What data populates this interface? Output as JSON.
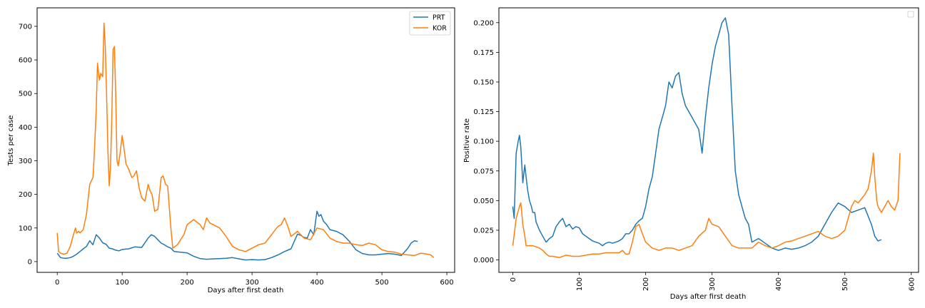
{
  "chart_data": [
    {
      "type": "line",
      "xlabel": "Days after first death",
      "ylabel": "Tests per case",
      "xlim": [
        -31,
        612
      ],
      "ylim": [
        -32,
        755
      ],
      "xticks": [
        0,
        100,
        200,
        300,
        400,
        500,
        600
      ],
      "yticks": [
        0,
        100,
        200,
        300,
        400,
        500,
        600,
        700
      ],
      "legend": "top-right",
      "series": [
        {
          "name": "PRT",
          "color": "#1f77b4",
          "x": [
            0,
            5,
            10,
            15,
            20,
            25,
            30,
            35,
            40,
            45,
            50,
            55,
            60,
            65,
            70,
            75,
            80,
            85,
            90,
            95,
            100,
            110,
            120,
            130,
            140,
            145,
            150,
            155,
            160,
            165,
            170,
            175,
            180,
            190,
            200,
            210,
            220,
            230,
            240,
            250,
            260,
            270,
            280,
            290,
            300,
            310,
            320,
            330,
            340,
            350,
            360,
            365,
            370,
            375,
            380,
            385,
            390,
            395,
            400,
            403,
            406,
            410,
            415,
            420,
            430,
            440,
            450,
            460,
            470,
            480,
            490,
            500,
            510,
            520,
            530,
            540,
            545,
            550,
            555
          ],
          "values": [
            25,
            12,
            10,
            10,
            12,
            16,
            22,
            30,
            38,
            45,
            62,
            50,
            80,
            70,
            56,
            52,
            40,
            38,
            34,
            32,
            36,
            38,
            44,
            42,
            70,
            80,
            75,
            65,
            55,
            50,
            44,
            40,
            30,
            28,
            26,
            16,
            9,
            7,
            8,
            9,
            10,
            12,
            8,
            5,
            6,
            5,
            6,
            12,
            20,
            30,
            38,
            60,
            82,
            78,
            72,
            70,
            95,
            80,
            150,
            135,
            140,
            120,
            110,
            95,
            90,
            80,
            60,
            35,
            24,
            20,
            20,
            22,
            24,
            22,
            18,
            40,
            55,
            62,
            60
          ]
        },
        {
          "name": "KOR",
          "color": "#ff7f0e",
          "x": [
            0,
            2,
            5,
            10,
            15,
            20,
            25,
            28,
            30,
            33,
            35,
            40,
            45,
            50,
            55,
            57,
            60,
            62,
            65,
            67,
            70,
            72,
            74,
            76,
            78,
            80,
            82,
            84,
            86,
            88,
            90,
            92,
            94,
            96,
            100,
            104,
            106,
            110,
            115,
            118,
            122,
            126,
            130,
            135,
            140,
            143,
            146,
            150,
            155,
            160,
            163,
            167,
            170,
            175,
            178,
            185,
            195,
            200,
            210,
            220,
            225,
            230,
            235,
            240,
            250,
            260,
            270,
            280,
            290,
            300,
            310,
            320,
            330,
            340,
            345,
            350,
            355,
            360,
            370,
            380,
            390,
            400,
            410,
            420,
            430,
            440,
            450,
            460,
            470,
            480,
            490,
            500,
            510,
            520,
            530,
            540,
            550,
            560,
            570,
            575,
            580
          ],
          "values": [
            85,
            30,
            25,
            22,
            25,
            45,
            80,
            100,
            85,
            90,
            85,
            95,
            140,
            230,
            250,
            320,
            450,
            590,
            540,
            560,
            550,
            710,
            640,
            500,
            330,
            225,
            280,
            420,
            630,
            640,
            500,
            300,
            285,
            310,
            375,
            320,
            290,
            275,
            250,
            255,
            270,
            220,
            190,
            180,
            230,
            210,
            200,
            150,
            155,
            250,
            255,
            230,
            225,
            100,
            40,
            50,
            80,
            110,
            125,
            110,
            95,
            130,
            115,
            110,
            100,
            75,
            45,
            35,
            30,
            40,
            50,
            55,
            80,
            105,
            110,
            130,
            105,
            75,
            90,
            70,
            65,
            100,
            95,
            70,
            60,
            55,
            55,
            50,
            48,
            55,
            50,
            35,
            30,
            28,
            22,
            20,
            18,
            25,
            22,
            20,
            12
          ]
        }
      ]
    },
    {
      "type": "line",
      "xlabel": "Days after first death",
      "ylabel": "Positive rate",
      "xlim": [
        -21,
        611
      ],
      "ylim": [
        -0.0105,
        0.2125
      ],
      "xticks": [
        0,
        100,
        200,
        300,
        400,
        500,
        600
      ],
      "yticks": [
        0.0,
        0.025,
        0.05,
        0.075,
        0.1,
        0.125,
        0.15,
        0.175,
        0.2
      ],
      "ytick_labels": [
        "0.000",
        "0.025",
        "0.050",
        "0.075",
        "0.100",
        "0.125",
        "0.150",
        "0.175",
        "0.200"
      ],
      "legend": "top-right (empty)",
      "series": [
        {
          "color": "#1f77b4",
          "x": [
            0,
            2,
            5,
            8,
            10,
            12,
            15,
            18,
            20,
            22,
            25,
            28,
            30,
            33,
            35,
            40,
            45,
            50,
            55,
            60,
            65,
            70,
            75,
            80,
            85,
            90,
            95,
            100,
            105,
            110,
            115,
            120,
            125,
            130,
            135,
            140,
            145,
            150,
            155,
            160,
            165,
            170,
            175,
            180,
            185,
            190,
            195,
            200,
            205,
            210,
            215,
            220,
            225,
            230,
            235,
            240,
            245,
            250,
            255,
            260,
            265,
            270,
            275,
            280,
            285,
            290,
            295,
            300,
            305,
            310,
            315,
            320,
            325,
            330,
            335,
            340,
            345,
            350,
            355,
            360,
            370,
            380,
            390,
            400,
            410,
            420,
            430,
            440,
            450,
            460,
            470,
            480,
            490,
            500,
            510,
            520,
            530,
            540,
            545,
            550,
            555
          ],
          "values": [
            0.045,
            0.035,
            0.09,
            0.1,
            0.105,
            0.095,
            0.065,
            0.08,
            0.07,
            0.06,
            0.05,
            0.045,
            0.04,
            0.04,
            0.032,
            0.025,
            0.02,
            0.015,
            0.018,
            0.02,
            0.028,
            0.032,
            0.035,
            0.028,
            0.03,
            0.026,
            0.028,
            0.027,
            0.022,
            0.02,
            0.018,
            0.016,
            0.015,
            0.014,
            0.012,
            0.014,
            0.015,
            0.014,
            0.015,
            0.016,
            0.018,
            0.022,
            0.022,
            0.025,
            0.03,
            0.033,
            0.035,
            0.045,
            0.06,
            0.07,
            0.09,
            0.11,
            0.12,
            0.13,
            0.15,
            0.145,
            0.155,
            0.158,
            0.14,
            0.13,
            0.125,
            0.12,
            0.115,
            0.11,
            0.09,
            0.12,
            0.145,
            0.165,
            0.18,
            0.19,
            0.2,
            0.204,
            0.19,
            0.13,
            0.075,
            0.055,
            0.045,
            0.035,
            0.03,
            0.015,
            0.018,
            0.014,
            0.01,
            0.008,
            0.01,
            0.009,
            0.01,
            0.012,
            0.015,
            0.02,
            0.03,
            0.04,
            0.048,
            0.045,
            0.04,
            0.042,
            0.044,
            0.03,
            0.02,
            0.016,
            0.017
          ]
        },
        {
          "color": "#ff7f0e",
          "x": [
            0,
            5,
            10,
            12,
            15,
            18,
            20,
            25,
            30,
            35,
            40,
            45,
            50,
            55,
            60,
            70,
            80,
            90,
            100,
            110,
            120,
            130,
            140,
            150,
            160,
            165,
            170,
            175,
            180,
            185,
            190,
            195,
            200,
            210,
            220,
            230,
            240,
            250,
            260,
            270,
            280,
            290,
            295,
            300,
            310,
            320,
            330,
            340,
            350,
            360,
            370,
            380,
            390,
            400,
            410,
            420,
            430,
            440,
            450,
            460,
            470,
            480,
            490,
            500,
            510,
            515,
            520,
            530,
            535,
            540,
            543,
            545,
            548,
            550,
            555,
            560,
            565,
            570,
            575,
            580,
            583
          ],
          "values": [
            0.012,
            0.035,
            0.045,
            0.048,
            0.03,
            0.02,
            0.012,
            0.012,
            0.012,
            0.011,
            0.01,
            0.008,
            0.005,
            0.003,
            0.003,
            0.002,
            0.004,
            0.003,
            0.003,
            0.004,
            0.005,
            0.005,
            0.006,
            0.006,
            0.006,
            0.008,
            0.005,
            0.005,
            0.015,
            0.028,
            0.03,
            0.022,
            0.015,
            0.01,
            0.008,
            0.01,
            0.01,
            0.008,
            0.01,
            0.012,
            0.02,
            0.025,
            0.035,
            0.03,
            0.028,
            0.02,
            0.012,
            0.01,
            0.01,
            0.01,
            0.015,
            0.012,
            0.01,
            0.012,
            0.015,
            0.016,
            0.018,
            0.02,
            0.022,
            0.024,
            0.02,
            0.018,
            0.02,
            0.025,
            0.045,
            0.05,
            0.048,
            0.055,
            0.06,
            0.075,
            0.09,
            0.07,
            0.05,
            0.045,
            0.04,
            0.045,
            0.05,
            0.045,
            0.042,
            0.05,
            0.09
          ]
        }
      ]
    }
  ]
}
